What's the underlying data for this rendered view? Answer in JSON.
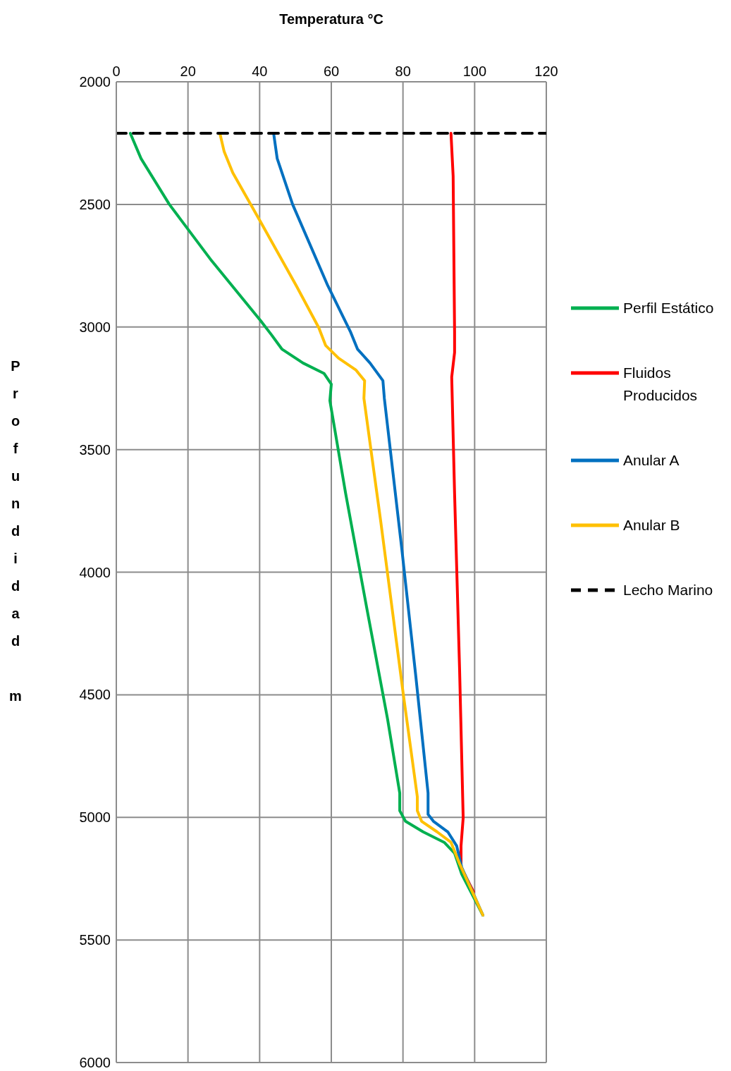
{
  "chart_data": {
    "type": "line",
    "xlabel": "Temperatura °C",
    "ylabel": "Profundidad m",
    "xlim": [
      0,
      120
    ],
    "xticks": [
      0,
      20,
      40,
      60,
      80,
      100,
      120
    ],
    "ylim": [
      6000,
      2000
    ],
    "yticks": [
      2000,
      2500,
      3000,
      3500,
      4000,
      4500,
      5000,
      5500,
      6000
    ],
    "grid": true,
    "legend": "right",
    "marker": "none",
    "series": [
      {
        "name": "Perfil Estático",
        "color": "#00b050",
        "x": [
          3.9,
          6.9,
          14.8,
          26.6,
          40.3,
          43.3,
          46.2,
          52.1,
          58,
          60,
          59.6,
          64,
          69.8,
          75.7,
          79.1,
          79.1,
          80.7,
          85.6,
          91.5,
          94.4,
          96.4,
          102.3
        ],
        "values": [
          2210,
          2313,
          2500,
          2730,
          2975,
          3032,
          3090,
          3147,
          3190,
          3233,
          3300,
          3679,
          4139,
          4599,
          4901,
          4973,
          5016,
          5059,
          5102,
          5146,
          5232,
          5399
        ]
      },
      {
        "name": "Fluidos Producidos",
        "color": "#ff0000",
        "x": [
          93.4,
          94,
          94.4,
          94.4,
          93.6,
          94.4,
          95.8,
          96.8,
          96.2,
          96.2,
          99.7
        ],
        "values": [
          2210,
          2385,
          3018,
          3104,
          3204,
          3679,
          4398,
          5002,
          5117,
          5204,
          5304
        ]
      },
      {
        "name": "Anular A",
        "color": "#0070c0",
        "x": [
          43.9,
          44.9,
          49.2,
          59,
          65.3,
          67.3,
          70.8,
          74.4,
          74.8,
          79.7,
          83.6,
          87,
          87,
          88.5,
          92.5,
          95,
          96.4,
          102.3
        ],
        "values": [
          2210,
          2313,
          2500,
          2831,
          3018,
          3090,
          3147,
          3219,
          3291,
          3909,
          4427,
          4901,
          4988,
          5016,
          5059,
          5117,
          5204,
          5399
        ]
      },
      {
        "name": "Anular B",
        "color": "#ffc000",
        "x": [
          28.9,
          30.1,
          32.5,
          40.3,
          50.2,
          56.5,
          58.4,
          62,
          66.9,
          69.3,
          69.1,
          73.8,
          80.1,
          84,
          84,
          85.2,
          89.5,
          93.4,
          95.8,
          102.3
        ],
        "values": [
          2210,
          2285,
          2371,
          2572,
          2831,
          3003,
          3075,
          3127,
          3176,
          3219,
          3291,
          3794,
          4499,
          4916,
          4973,
          5016,
          5059,
          5102,
          5189,
          5399
        ]
      },
      {
        "name": "Lecho Marino",
        "color": "#000000",
        "line_style": "dashed",
        "x": [
          0,
          120
        ],
        "values": [
          2210,
          2210
        ]
      }
    ]
  }
}
